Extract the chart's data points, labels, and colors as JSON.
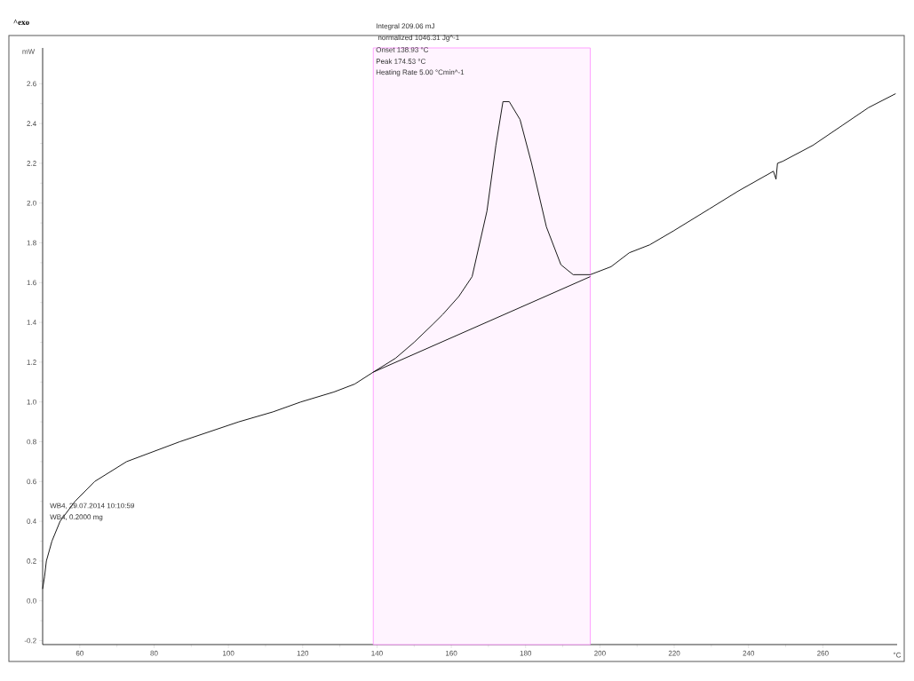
{
  "chart_data": {
    "type": "line",
    "xlabel": "°C",
    "ylabel": "mW",
    "xlim": [
      50,
      280
    ],
    "ylim": [
      -0.22,
      2.78
    ],
    "xticks": [
      60,
      80,
      100,
      120,
      140,
      160,
      180,
      200,
      220,
      240,
      260
    ],
    "yticks": [
      {
        "value": -0.2,
        "label": "-0.2"
      },
      {
        "value": 0,
        "label": "0.0"
      },
      {
        "value": 0.2,
        "label": "0.2"
      },
      {
        "value": 0.4,
        "label": "0.4"
      },
      {
        "value": 0.6,
        "label": "0.6"
      },
      {
        "value": 0.8,
        "label": "0.8"
      },
      {
        "value": 1.0,
        "label": "1.0"
      },
      {
        "value": 1.2,
        "label": "1.2"
      },
      {
        "value": 1.4,
        "label": "1.4"
      },
      {
        "value": 1.6,
        "label": "1.6"
      },
      {
        "value": 1.8,
        "label": "1.8"
      },
      {
        "value": 2.0,
        "label": "2.0"
      },
      {
        "value": 2.2,
        "label": "2.2"
      },
      {
        "value": 2.4,
        "label": "2.4"
      },
      {
        "value": 2.6,
        "label": "2.6"
      }
    ],
    "series": [
      {
        "color": "#000000",
        "x": [
          50,
          50.5,
          51,
          52.5,
          54.7,
          58.7,
          64,
          72.6,
          86.9,
          102.8,
          112,
          119.5,
          128.4,
          134,
          139,
          145,
          150,
          155,
          157.7,
          162,
          165.6,
          169.6,
          172,
          173.9,
          175.6,
          178.5,
          181.6,
          185.6,
          189.5,
          192.8,
          197.4,
          203,
          207.9,
          213.4,
          219.8,
          229.4,
          237.2,
          246.7,
          247.4,
          247.8,
          249.2,
          257.3,
          265.2,
          272.3,
          279.6
        ],
        "values": [
          0.06,
          0.12,
          0.2,
          0.3,
          0.4,
          0.5,
          0.6,
          0.7,
          0.8,
          0.9,
          0.95,
          1.0,
          1.05,
          1.09,
          1.15,
          1.22,
          1.3,
          1.39,
          1.44,
          1.53,
          1.63,
          1.96,
          2.29,
          2.51,
          2.51,
          2.42,
          2.2,
          1.88,
          1.69,
          1.64,
          1.64,
          1.68,
          1.75,
          1.79,
          1.86,
          1.97,
          2.06,
          2.16,
          2.12,
          2.2,
          2.21,
          2.29,
          2.39,
          2.48,
          2.55
        ]
      },
      {
        "color": "#000000",
        "x": [
          139,
          197.4
        ],
        "values": [
          1.15,
          1.63
        ]
      }
    ],
    "bands": [
      {
        "axis": "x",
        "from": 139,
        "to": 197.4,
        "color": "#ff99ff"
      }
    ],
    "annotations": [
      "^exo",
      "Integral 209.06 mJ",
      "  normalized 1046.31 Jg^-1",
      "Onset 138.93 °C",
      "Peak 174.53 °C",
      "Heating Rate 5.00 °Cmin^-1",
      "WB4, 29.07.2014 10:10:59",
      "WB4, 0.2000 mg"
    ]
  }
}
